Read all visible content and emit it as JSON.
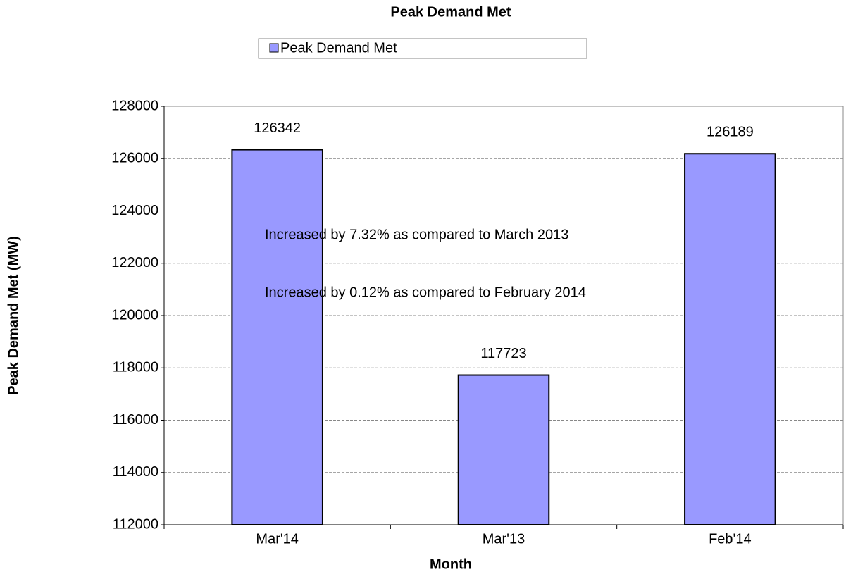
{
  "chart_data": {
    "type": "bar",
    "title": "Peak Demand Met",
    "legend": "Peak Demand Met",
    "x_label": "Month",
    "y_label": "Peak Demand Met (MW)",
    "categories": [
      "Mar'14",
      "Mar'13",
      "Feb'14"
    ],
    "series": [
      {
        "name": "Peak Demand Met",
        "color": "#9999ff",
        "values": [
          126342,
          117723,
          126189
        ]
      }
    ],
    "annotations": [
      "Increased by 7.32% as compared to March 2013",
      "Increased by 0.12% as compared to February 2014"
    ],
    "ylim": [
      112000,
      128000
    ],
    "yticks": [
      112000,
      114000,
      116000,
      118000,
      120000,
      122000,
      124000,
      126000,
      128000
    ],
    "grid": true
  }
}
